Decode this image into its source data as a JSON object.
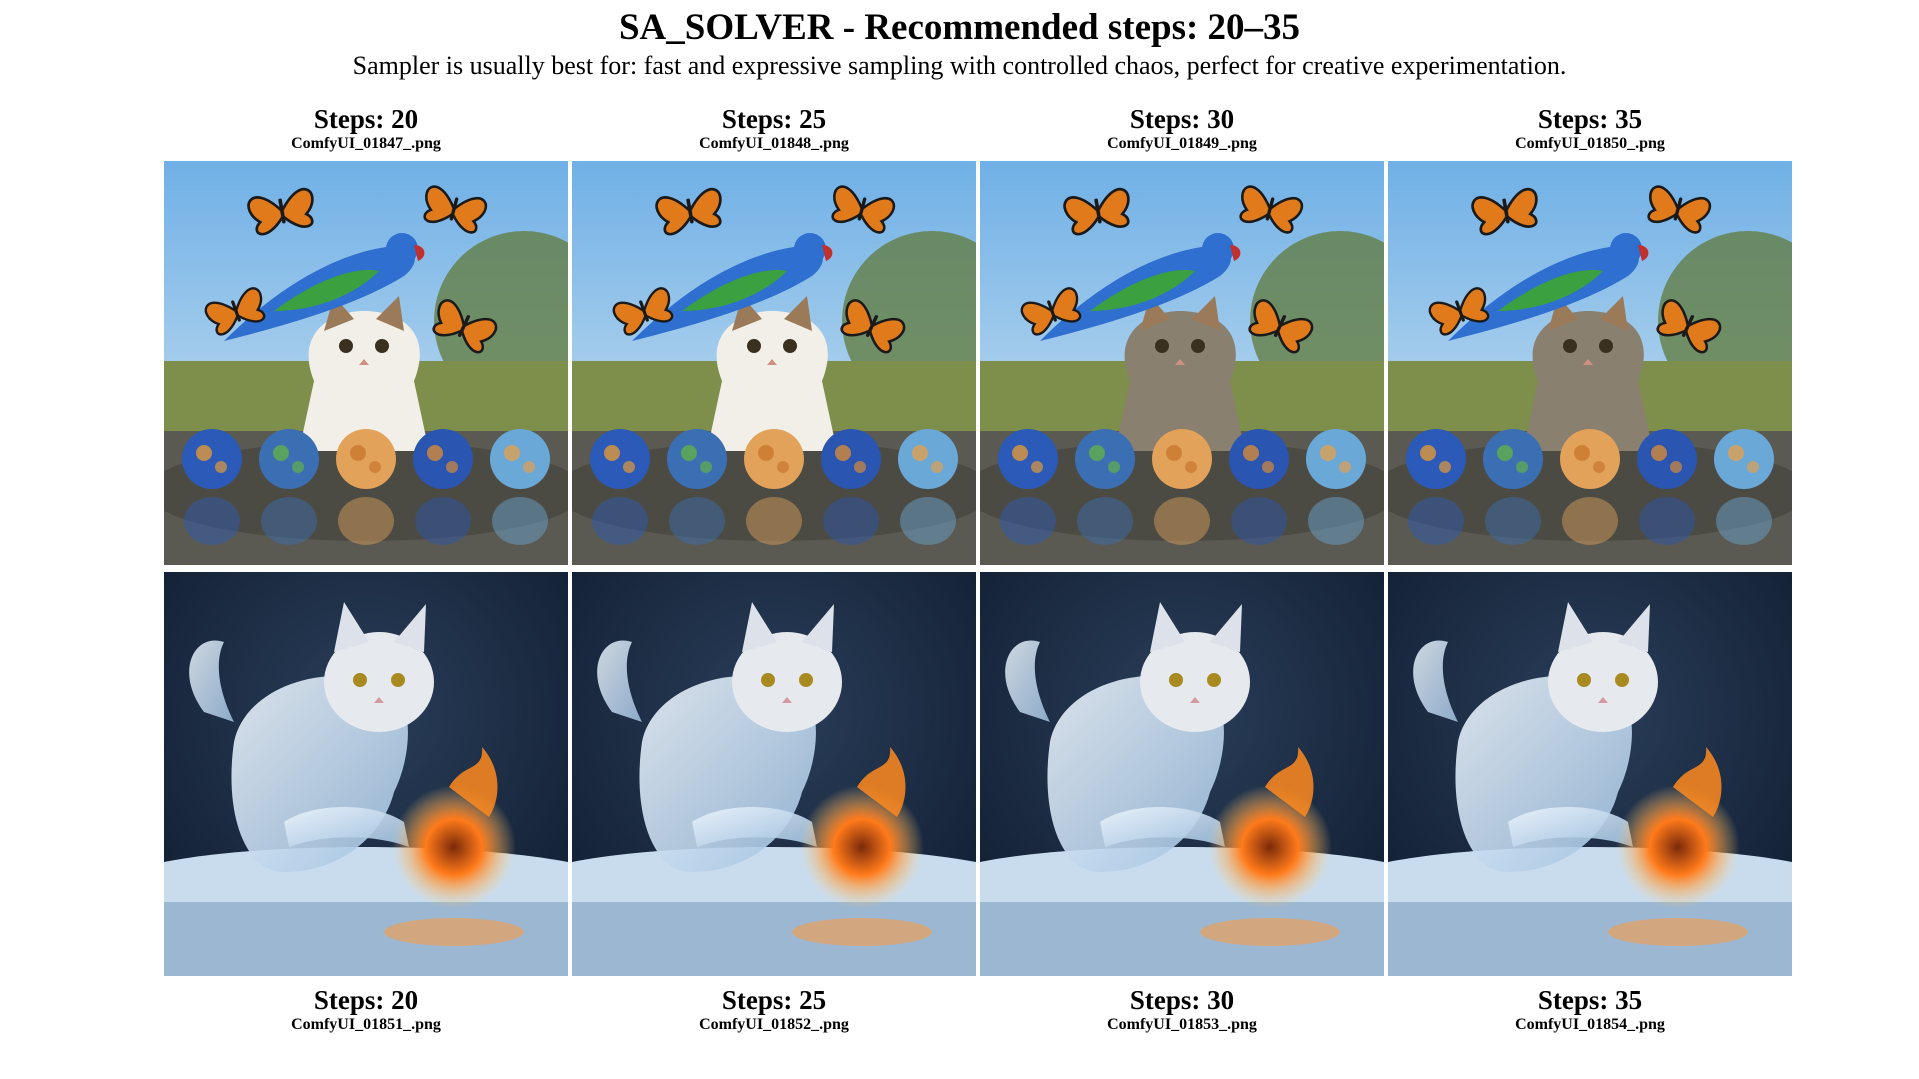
{
  "header": {
    "title": "SA_SOLVER - Recommended steps: 20–35",
    "subtitle": "Sampler is usually best for: fast and expressive sampling with controlled chaos, perfect for creative experimentation."
  },
  "top_row": [
    {
      "steps": "Steps: 20",
      "file": "ComfyUI_01847_.png"
    },
    {
      "steps": "Steps: 25",
      "file": "ComfyUI_01848_.png"
    },
    {
      "steps": "Steps: 30",
      "file": "ComfyUI_01849_.png"
    },
    {
      "steps": "Steps: 35",
      "file": "ComfyUI_01850_.png"
    }
  ],
  "bottom_row": [
    {
      "steps": "Steps: 20",
      "file": "ComfyUI_01851_.png"
    },
    {
      "steps": "Steps: 25",
      "file": "ComfyUI_01852_.png"
    },
    {
      "steps": "Steps: 30",
      "file": "ComfyUI_01853_.png"
    },
    {
      "steps": "Steps: 35",
      "file": "ComfyUI_01854_.png"
    }
  ],
  "images": {
    "top": "parrot-cat-butterflies-planets-image",
    "bottom": "ice-cat-fireball-image"
  },
  "colors": {
    "sky": "#8ec3ea",
    "grass": "#7d8f4a",
    "water": "#5a5a52",
    "parrot_blue": "#2f6fd0",
    "butterfly_orange": "#e07a1a",
    "night_bg": "#0e1a2c",
    "ice": "#cfe1f3",
    "fire": "#ff8a1e"
  }
}
